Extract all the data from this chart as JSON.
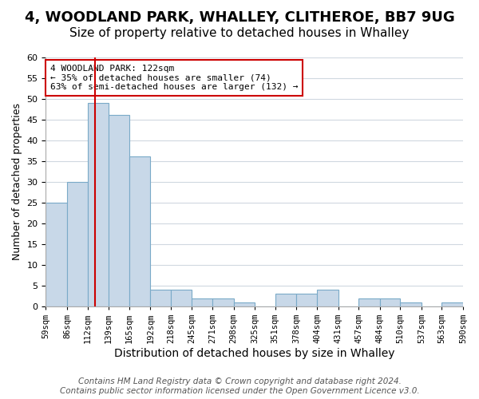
{
  "title": "4, WOODLAND PARK, WHALLEY, CLITHEROE, BB7 9UG",
  "subtitle": "Size of property relative to detached houses in Whalley",
  "xlabel": "Distribution of detached houses by size in Whalley",
  "ylabel": "Number of detached properties",
  "bar_edges": [
    59,
    86,
    112,
    139,
    165,
    192,
    218,
    245,
    271,
    298,
    325,
    351,
    378,
    404,
    431,
    457,
    484,
    510,
    537,
    563,
    590
  ],
  "bar_heights": [
    25,
    30,
    49,
    46,
    36,
    4,
    4,
    2,
    2,
    1,
    0,
    3,
    3,
    4,
    0,
    2,
    2,
    1,
    0,
    1
  ],
  "bar_color": "#c8d8e8",
  "bar_edgecolor": "#7aaac8",
  "bar_linewidth": 0.8,
  "property_line_x": 122,
  "property_line_color": "#cc0000",
  "ylim": [
    0,
    60
  ],
  "yticks": [
    0,
    5,
    10,
    15,
    20,
    25,
    30,
    35,
    40,
    45,
    50,
    55,
    60
  ],
  "tick_labels": [
    "59sqm",
    "86sqm",
    "112sqm",
    "139sqm",
    "165sqm",
    "192sqm",
    "218sqm",
    "245sqm",
    "271sqm",
    "298sqm",
    "325sqm",
    "351sqm",
    "378sqm",
    "404sqm",
    "431sqm",
    "457sqm",
    "484sqm",
    "510sqm",
    "537sqm",
    "563sqm",
    "590sqm"
  ],
  "annotation_text": "4 WOODLAND PARK: 122sqm\n← 35% of detached houses are smaller (74)\n63% of semi-detached houses are larger (132) →",
  "annotation_box_edgecolor": "#cc0000",
  "annotation_box_facecolor": "#ffffff",
  "footer_line1": "Contains HM Land Registry data © Crown copyright and database right 2024.",
  "footer_line2": "Contains public sector information licensed under the Open Government Licence v3.0.",
  "bg_color": "#ffffff",
  "grid_color": "#d0d8e0",
  "title_fontsize": 13,
  "subtitle_fontsize": 11,
  "xlabel_fontsize": 10,
  "ylabel_fontsize": 9,
  "footer_fontsize": 7.5
}
